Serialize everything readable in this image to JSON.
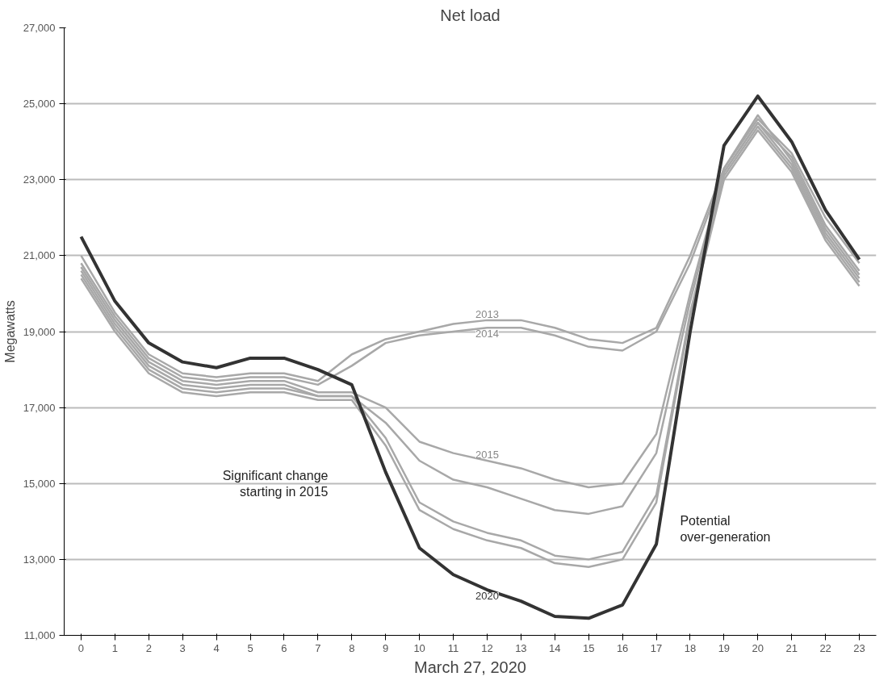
{
  "chart_data": {
    "type": "line",
    "title": "Net load",
    "xlabel": "March 27, 2020",
    "ylabel": "Megawatts",
    "x": [
      0,
      1,
      2,
      3,
      4,
      5,
      6,
      7,
      8,
      9,
      10,
      11,
      12,
      13,
      14,
      15,
      16,
      17,
      18,
      19,
      20,
      21,
      22,
      23
    ],
    "series": [
      {
        "name": "2013",
        "color": "#a8a8a8",
        "values": [
          21000,
          19500,
          18400,
          17900,
          17800,
          17900,
          17900,
          17700,
          18400,
          18800,
          19000,
          19200,
          19300,
          19300,
          19100,
          18800,
          18700,
          19100,
          21000,
          23300,
          24600,
          23700,
          22000,
          20800
        ]
      },
      {
        "name": "2014",
        "color": "#a8a8a8",
        "values": [
          20800,
          19400,
          18300,
          17800,
          17700,
          17800,
          17800,
          17600,
          18100,
          18700,
          18900,
          19000,
          19100,
          19100,
          18900,
          18600,
          18500,
          19000,
          20800,
          23200,
          24500,
          23600,
          21800,
          20600
        ]
      },
      {
        "name": "2015",
        "color": "#a8a8a8",
        "values": [
          20700,
          19300,
          18200,
          17700,
          17600,
          17700,
          17700,
          17400,
          17400,
          17000,
          16100,
          15800,
          15600,
          15400,
          15100,
          14900,
          15000,
          16300,
          20000,
          23300,
          24700,
          23500,
          21700,
          20500
        ]
      },
      {
        "color": "#a8a8a8",
        "values": [
          20600,
          19200,
          18100,
          17600,
          17500,
          17600,
          17600,
          17300,
          17300,
          16600,
          15600,
          15100,
          14900,
          14600,
          14300,
          14200,
          14400,
          15800,
          19800,
          23200,
          24500,
          23400,
          21600,
          20400
        ]
      },
      {
        "color": "#a8a8a8",
        "values": [
          20500,
          19100,
          18000,
          17500,
          17400,
          17500,
          17500,
          17300,
          17300,
          16200,
          14500,
          14000,
          13700,
          13500,
          13100,
          13000,
          13200,
          14700,
          19500,
          23100,
          24400,
          23300,
          21500,
          20300
        ]
      },
      {
        "color": "#a8a8a8",
        "values": [
          20400,
          19000,
          17900,
          17400,
          17300,
          17400,
          17400,
          17200,
          17200,
          16000,
          14300,
          13800,
          13500,
          13300,
          12900,
          12800,
          13000,
          14500,
          19400,
          23000,
          24300,
          23200,
          21400,
          20200
        ]
      },
      {
        "name": "2020",
        "color": "#333333",
        "values": [
          21500,
          19800,
          18700,
          18200,
          18050,
          18300,
          18300,
          18000,
          17600,
          15300,
          13300,
          12600,
          12200,
          11900,
          11500,
          11450,
          11800,
          13400,
          19000,
          23900,
          25200,
          24000,
          22200,
          20900
        ]
      }
    ],
    "xlim": [
      -0.5,
      23.5
    ],
    "xticks": [
      0,
      1,
      2,
      3,
      4,
      5,
      6,
      7,
      8,
      9,
      10,
      11,
      12,
      13,
      14,
      15,
      16,
      17,
      18,
      19,
      20,
      21,
      22,
      23
    ],
    "ylim": [
      11000,
      27000
    ],
    "yticks": [
      {
        "value": 11000,
        "label": "11,000"
      },
      {
        "value": 13000,
        "label": "13,000"
      },
      {
        "value": 15000,
        "label": "15,000"
      },
      {
        "value": 17000,
        "label": "17,000"
      },
      {
        "value": 19000,
        "label": "19,000"
      },
      {
        "value": 21000,
        "label": "21,000"
      },
      {
        "value": 23000,
        "label": "23,000"
      },
      {
        "value": 25000,
        "label": "25,000"
      },
      {
        "value": 27000,
        "label": "27,000"
      }
    ],
    "grid": "y",
    "marker": "none",
    "line_style": "solid",
    "annotations": [
      "Significant change\nstarting in 2015",
      "Potential\nover-generation"
    ]
  }
}
